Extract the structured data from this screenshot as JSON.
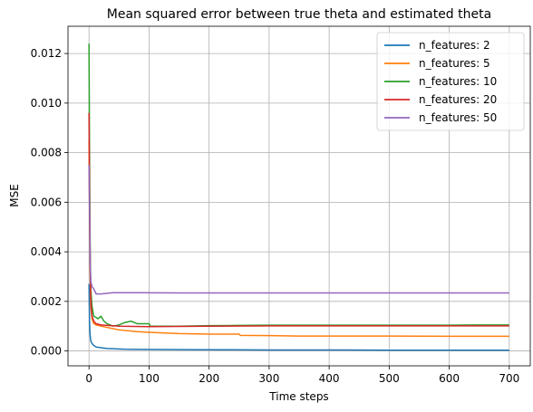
{
  "chart_data": {
    "type": "line",
    "title": "Mean squared error between true theta and estimated theta",
    "xlabel": "Time steps",
    "ylabel": "MSE",
    "xlim": [
      -35,
      735
    ],
    "ylim": [
      -0.0006,
      0.0131
    ],
    "xticks": [
      0,
      100,
      200,
      300,
      400,
      500,
      600,
      700
    ],
    "xtick_labels": [
      "0",
      "100",
      "200",
      "300",
      "400",
      "500",
      "600",
      "700"
    ],
    "yticks": [
      0.0,
      0.002,
      0.004,
      0.006,
      0.008,
      0.01,
      0.012
    ],
    "ytick_labels": [
      "0.000",
      "0.002",
      "0.004",
      "0.006",
      "0.008",
      "0.010",
      "0.012"
    ],
    "grid": true,
    "legend_position": "top-right",
    "series": [
      {
        "name": "n_features: 2",
        "color": "#1f77b4",
        "x": [
          0,
          1,
          2,
          3,
          5,
          8,
          12,
          20,
          30,
          40,
          60,
          100,
          200,
          300,
          400,
          500,
          600,
          700
        ],
        "y": [
          0.0027,
          0.0011,
          0.0006,
          0.0004,
          0.0003,
          0.00022,
          0.00016,
          0.00013,
          0.0001,
          9e-05,
          7e-05,
          6e-05,
          5e-05,
          4e-05,
          4e-05,
          3e-05,
          3e-05,
          3e-05
        ]
      },
      {
        "name": "n_features: 5",
        "color": "#ff7f0e",
        "x": [
          0,
          1,
          2,
          3,
          5,
          8,
          12,
          20,
          30,
          50,
          80,
          100,
          150,
          200,
          250,
          252,
          300,
          350,
          400,
          500,
          600,
          700
        ],
        "y": [
          0.0085,
          0.005,
          0.003,
          0.0018,
          0.0013,
          0.0011,
          0.00105,
          0.001,
          0.00095,
          0.00085,
          0.00078,
          0.00075,
          0.0007,
          0.00068,
          0.00068,
          0.00063,
          0.00062,
          0.0006,
          0.0006,
          0.0006,
          0.00059,
          0.00059
        ]
      },
      {
        "name": "n_features: 10",
        "color": "#2ca02c",
        "x": [
          0,
          1,
          2,
          3,
          5,
          8,
          12,
          15,
          20,
          25,
          30,
          40,
          50,
          60,
          70,
          80,
          90,
          100,
          102,
          150,
          200,
          250,
          300,
          400,
          500,
          600,
          650,
          700
        ],
        "y": [
          0.0124,
          0.0075,
          0.004,
          0.0025,
          0.0018,
          0.0014,
          0.00135,
          0.0013,
          0.0014,
          0.0012,
          0.0011,
          0.001,
          0.00105,
          0.00115,
          0.0012,
          0.0011,
          0.0011,
          0.0011,
          0.001,
          0.001,
          0.00102,
          0.00103,
          0.00104,
          0.00104,
          0.00104,
          0.00104,
          0.00105,
          0.00105
        ]
      },
      {
        "name": "n_features: 20",
        "color": "#d62728",
        "x": [
          0,
          1,
          2,
          3,
          5,
          8,
          12,
          20,
          30,
          50,
          100,
          200,
          300,
          400,
          500,
          600,
          700
        ],
        "y": [
          0.0096,
          0.006,
          0.0035,
          0.002,
          0.0014,
          0.0012,
          0.0011,
          0.00105,
          0.00103,
          0.001,
          0.00098,
          0.001,
          0.00101,
          0.00101,
          0.00101,
          0.00101,
          0.00101
        ]
      },
      {
        "name": "n_features: 50",
        "color": "#9467bd",
        "x": [
          0,
          1,
          2,
          3,
          5,
          8,
          12,
          20,
          40,
          80,
          150,
          200,
          300,
          400,
          500,
          600,
          700
        ],
        "y": [
          0.0075,
          0.0055,
          0.0035,
          0.0028,
          0.0026,
          0.0025,
          0.0023,
          0.0023,
          0.00235,
          0.00235,
          0.00234,
          0.00234,
          0.00234,
          0.00234,
          0.00234,
          0.00234,
          0.00234
        ]
      }
    ]
  }
}
